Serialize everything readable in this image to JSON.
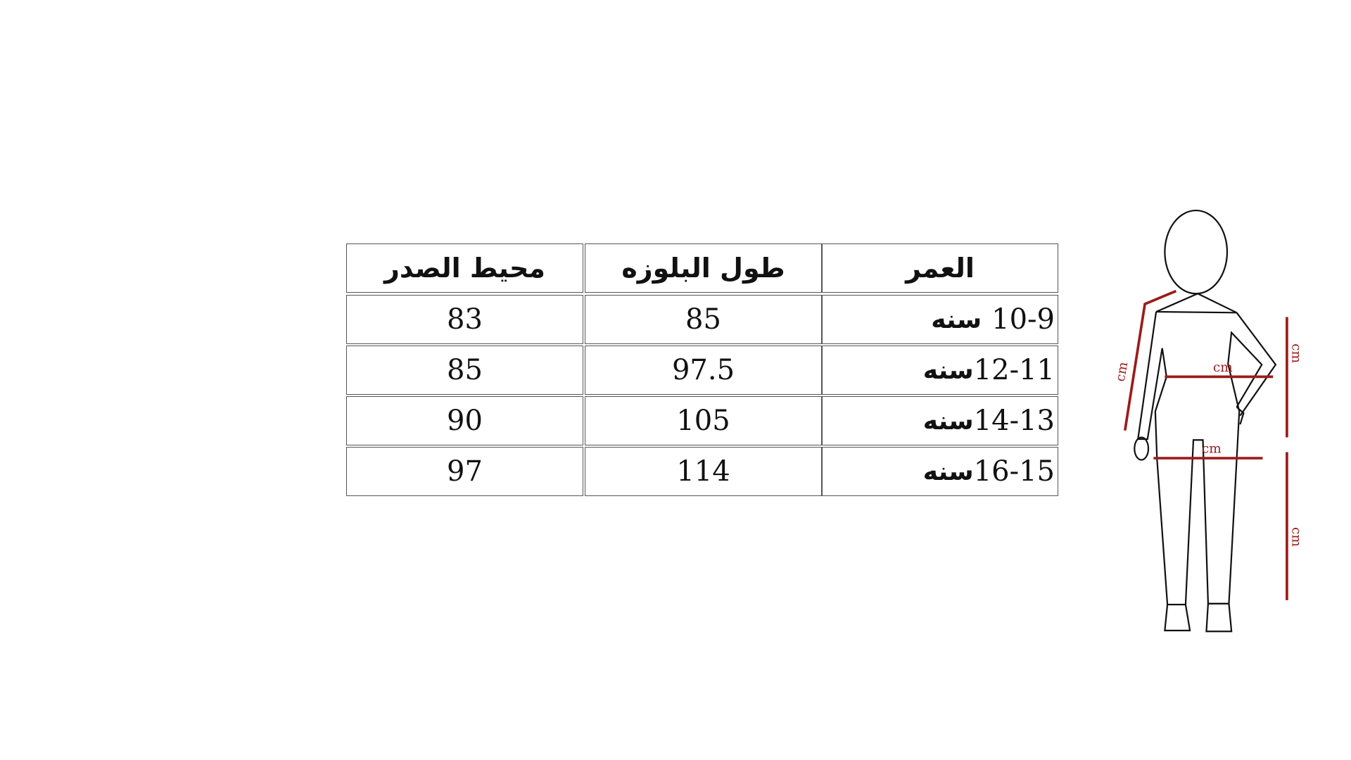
{
  "table": {
    "headers": [
      "محيط الصدر",
      "طول البلوزه",
      "العمر"
    ],
    "rows": [
      {
        "chest": "83",
        "length": "85",
        "age_range": "10-9",
        "age_unit": "سنه"
      },
      {
        "chest": "85",
        "length": "97.5",
        "age_range": "12-11",
        "age_unit": "سنه"
      },
      {
        "chest": "90",
        "length": "105",
        "age_range": "14-13",
        "age_unit": "سنه"
      },
      {
        "chest": "97",
        "length": "114",
        "age_range": "16-15",
        "age_unit": "سنه"
      }
    ]
  },
  "figure": {
    "unit_labels": [
      "cm",
      "cm",
      "cm",
      "cm",
      "cm"
    ],
    "measure_color": "#9b1c1c"
  }
}
